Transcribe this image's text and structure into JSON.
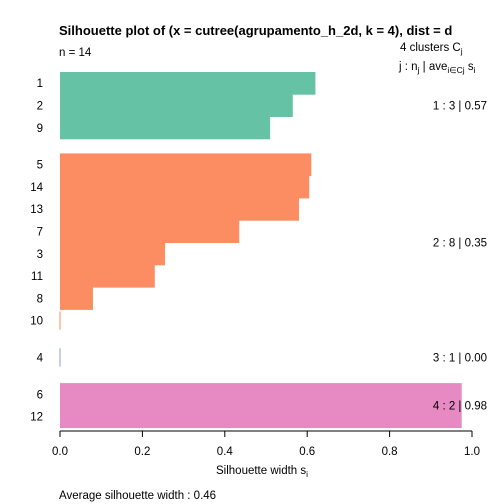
{
  "chart_data": {
    "type": "bar",
    "orientation": "horizontal",
    "title": "Silhouette plot of (x = cutree(agrupamento_h_2d, k = 4), dist = d",
    "n_label": "n = 14",
    "header_line1": "4  clusters  C",
    "header_line1_sub": "j",
    "header_line2_parts": [
      "j :  n",
      "j",
      " | ave",
      "i∈Cj",
      "  s",
      "i"
    ],
    "xlabel": "Silhouette width s",
    "xlabel_sub": "i",
    "footer": "Average silhouette width :  0.46",
    "xlim": [
      0,
      1
    ],
    "xticks": [
      "0.0",
      "0.2",
      "0.4",
      "0.6",
      "0.8",
      "1.0"
    ],
    "grid": false,
    "clusters": [
      {
        "id": 1,
        "color": "#66c2a5",
        "summary": "1 :   3  |  0.57",
        "items": [
          {
            "label": "1",
            "value": 0.62
          },
          {
            "label": "2",
            "value": 0.565
          },
          {
            "label": "9",
            "value": 0.51
          }
        ]
      },
      {
        "id": 2,
        "color": "#fc8d62",
        "summary": "2 :   8  |  0.35",
        "items": [
          {
            "label": "5",
            "value": 0.61
          },
          {
            "label": "14",
            "value": 0.605
          },
          {
            "label": "13",
            "value": 0.58
          },
          {
            "label": "7",
            "value": 0.435
          },
          {
            "label": "3",
            "value": 0.255
          },
          {
            "label": "11",
            "value": 0.23
          },
          {
            "label": "8",
            "value": 0.08
          },
          {
            "label": "10",
            "value": 0.0
          }
        ]
      },
      {
        "id": 3,
        "color": "#8da0cb",
        "summary": "3 :   1  |  0.00",
        "items": [
          {
            "label": "4",
            "value": 0.0
          }
        ]
      },
      {
        "id": 4,
        "color": "#e78ac3",
        "summary": "4 :   2  |  0.98",
        "items": [
          {
            "label": "6",
            "value": 0.975
          },
          {
            "label": "12",
            "value": 0.975
          }
        ]
      }
    ]
  }
}
